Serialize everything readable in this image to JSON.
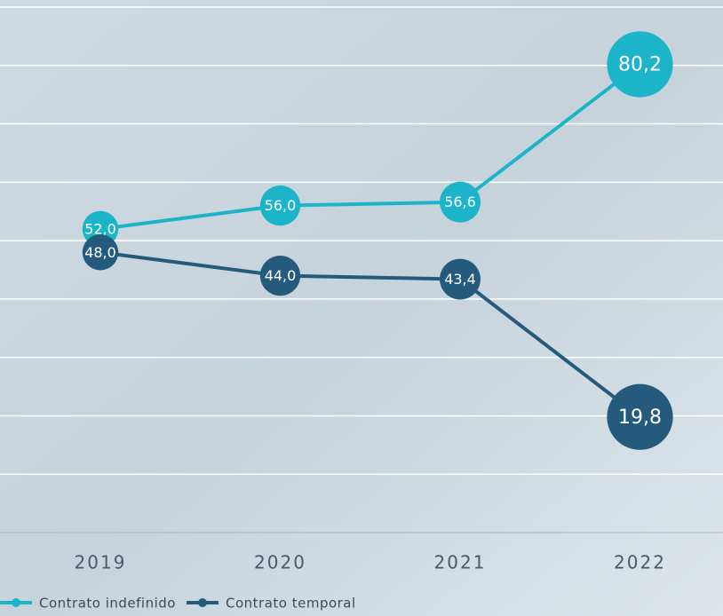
{
  "chart_data": {
    "type": "line",
    "categories": [
      "2019",
      "2020",
      "2021",
      "2022"
    ],
    "series": [
      {
        "name": "Contrato indefinido",
        "color": "#1cb4c9",
        "values": [
          52.0,
          56.0,
          56.6,
          80.2
        ],
        "value_labels": [
          "52,0",
          "56,0",
          "56,6",
          "80,2"
        ]
      },
      {
        "name": "Contrato temporal",
        "color": "#245b7d",
        "values": [
          48.0,
          44.0,
          43.4,
          19.8
        ],
        "value_labels": [
          "48,0",
          "44,0",
          "43,4",
          "19,8"
        ]
      }
    ],
    "ylim": [
      0,
      90
    ],
    "yticks": [
      0,
      10,
      20,
      30,
      40,
      50,
      60,
      70,
      80,
      90
    ],
    "grid": true,
    "legend": "bottom-left"
  }
}
